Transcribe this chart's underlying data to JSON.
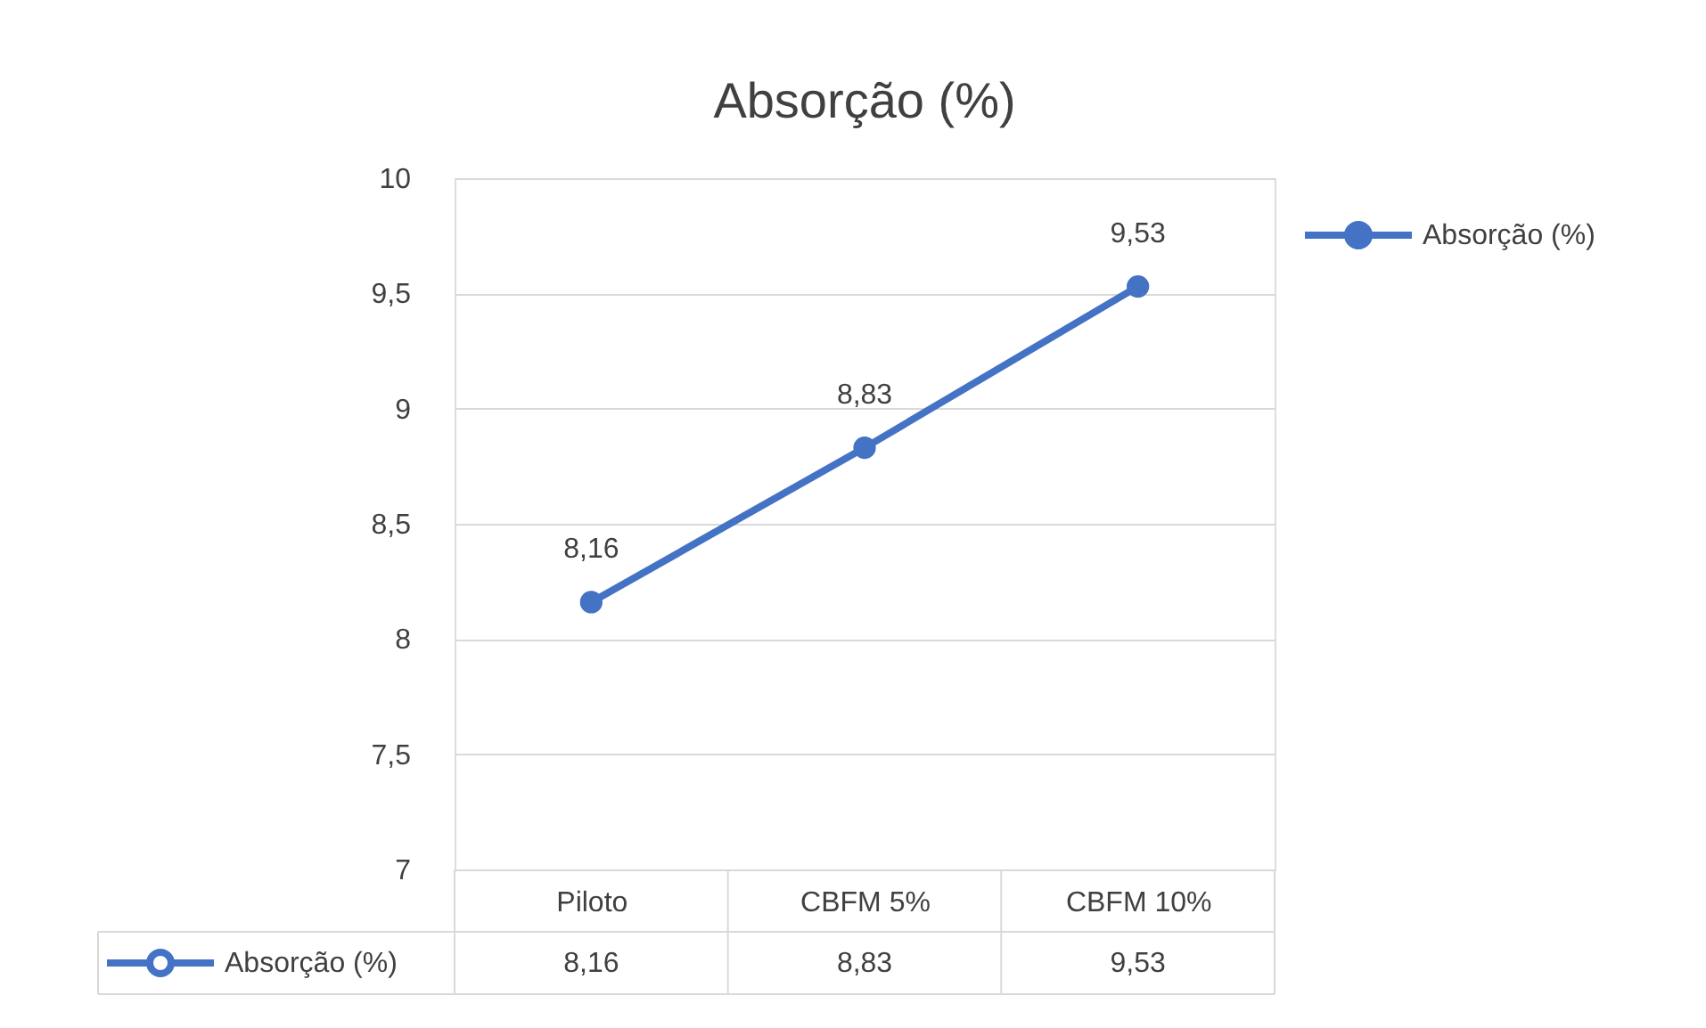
{
  "chart_data": {
    "type": "line",
    "title": "Absorção (%)",
    "categories": [
      "Piloto",
      "CBFM 5%",
      "CBFM 10%"
    ],
    "series": [
      {
        "name": "Absorção (%)",
        "color": "#4472c4",
        "values": [
          8.16,
          8.83,
          9.53
        ],
        "value_labels": [
          "8,16",
          "8,83",
          "9,53"
        ]
      }
    ],
    "ylim": [
      7,
      10
    ],
    "yticks": [
      7,
      {
        "value": 7.5,
        "label": "7,5"
      },
      8,
      {
        "value": 8.5,
        "label": "8,5"
      },
      9,
      {
        "value": 9.5,
        "label": "9,5"
      },
      10
    ],
    "grid": "y",
    "legend": "right",
    "marker": "circle",
    "line_style": "solid"
  }
}
